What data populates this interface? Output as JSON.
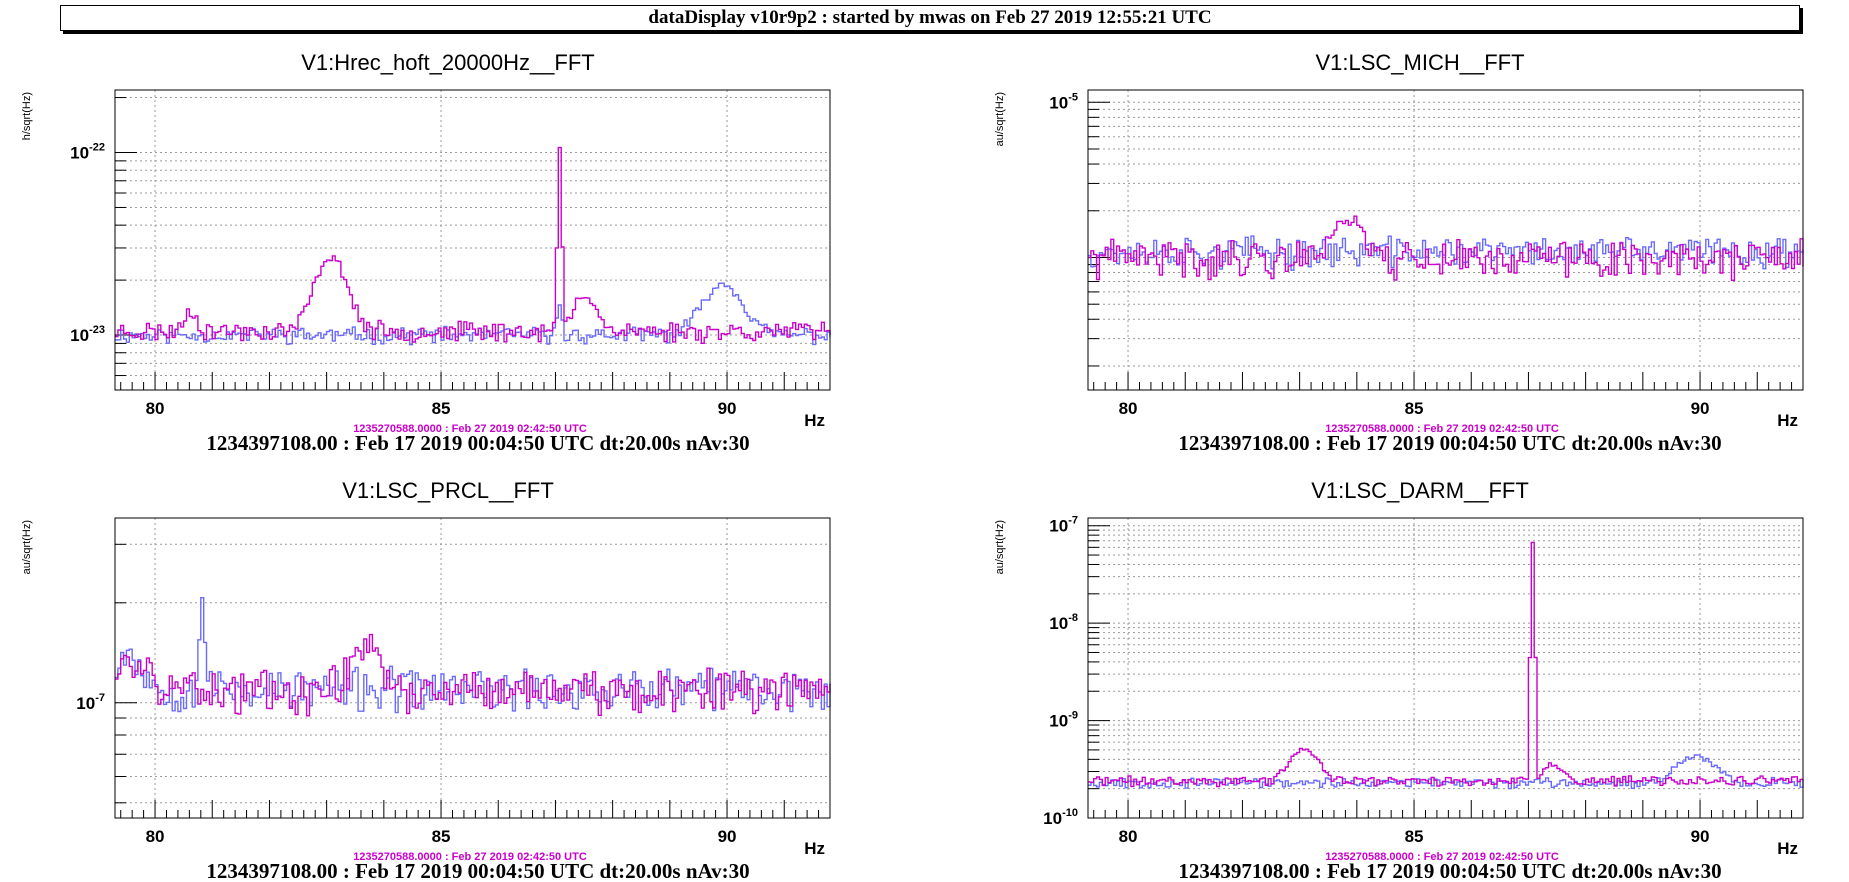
{
  "header": {
    "title": "dataDisplay v10r9p2 : started by mwas on Feb 27 2019 12:55:21 UTC"
  },
  "chart_data": [
    {
      "type": "line",
      "title": "V1:Hrec_hoft_20000Hz__FFT",
      "ylabel": "h/sqrt(Hz)",
      "xlabel": "Hz",
      "xlim": [
        79.3,
        91.8
      ],
      "ylim": [
        5e-24,
        2.2e-22
      ],
      "yscale": "log",
      "xticks": [
        "80",
        "85",
        "90"
      ],
      "yticks": [
        {
          "base": "10",
          "exp": "-22",
          "value": 1e-22
        },
        {
          "base": "10",
          "exp": "-23",
          "value": 1e-23
        }
      ],
      "stamp": "1235270588.0000 : Feb 27 2019 02:42:50 UTC",
      "footer": "1234397108.00 : Feb 17 2019 00:04:50 UTC dt:20.00s nAv:30",
      "grid": true,
      "series": [
        {
          "color": "#6a6aff",
          "noise": 0.08,
          "baseline": 1e-23,
          "bumps": [
            {
              "x": 89.9,
              "w": 0.45,
              "a": 0.9
            },
            {
              "x": 87.05,
              "w": 0.05,
              "a": 0.5
            }
          ],
          "seed": 11
        },
        {
          "color": "#cc00cc",
          "noise": 0.1,
          "baseline": 1.05e-23,
          "bumps": [
            {
              "x": 83.05,
              "w": 0.35,
              "a": 1.55
            },
            {
              "x": 87.05,
              "w": 0.04,
              "a": 9.0
            },
            {
              "x": 87.5,
              "w": 0.25,
              "a": 0.6
            },
            {
              "x": 80.6,
              "w": 0.15,
              "a": 0.3
            }
          ],
          "seed": 23
        }
      ]
    },
    {
      "type": "line",
      "title": "V1:LSC_MICH__FFT",
      "ylabel": "au/sqrt(Hz)",
      "xlabel": "Hz",
      "xlim": [
        79.3,
        91.8
      ],
      "ylim": [
        1.4e-07,
        1.2e-05
      ],
      "yscale": "log",
      "xticks": [
        "80",
        "85",
        "90"
      ],
      "yticks": [
        {
          "base": "10",
          "exp": "-5",
          "value": 1e-05
        }
      ],
      "stamp": "1235270588.0000 : Feb 27 2019 02:42:50 UTC",
      "footer": "1234397108.00 : Feb 17 2019 00:04:50 UTC dt:20.00s nAv:30",
      "grid": true,
      "series": [
        {
          "color": "#6a6aff",
          "noise": 0.18,
          "baseline": 1.1e-06,
          "bumps": [],
          "seed": 37
        },
        {
          "color": "#cc00cc",
          "noise": 0.22,
          "baseline": 1e-06,
          "bumps": [
            {
              "x": 83.8,
              "w": 0.35,
              "a": 0.8
            }
          ],
          "seed": 41
        }
      ]
    },
    {
      "type": "line",
      "title": "V1:LSC_PRCL__FFT",
      "ylabel": "au/sqrt(Hz)",
      "xlabel": "Hz",
      "xlim": [
        79.3,
        91.8
      ],
      "ylim": [
        4.5e-08,
        3.6e-07
      ],
      "yscale": "log",
      "xticks": [
        "80",
        "85",
        "90"
      ],
      "yticks": [
        {
          "base": "10",
          "exp": "-7",
          "value": 1e-07
        }
      ],
      "stamp": "1235270588.0000 : Feb 27 2019 02:42:50 UTC",
      "footer": "1234397108.00 : Feb 17 2019 00:04:50 UTC dt:20.00s nAv:30",
      "grid": true,
      "series": [
        {
          "color": "#6a6aff",
          "noise": 0.12,
          "baseline": 1.1e-07,
          "bumps": [
            {
              "x": 80.8,
              "w": 0.06,
              "a": 0.9
            },
            {
              "x": 79.5,
              "w": 0.3,
              "a": 0.3
            }
          ],
          "seed": 53
        },
        {
          "color": "#cc00cc",
          "noise": 0.12,
          "baseline": 1.1e-07,
          "bumps": [
            {
              "x": 83.7,
              "w": 0.3,
              "a": 0.4
            },
            {
              "x": 79.6,
              "w": 0.4,
              "a": 0.2
            }
          ],
          "seed": 59
        }
      ]
    },
    {
      "type": "line",
      "title": "V1:LSC_DARM__FFT",
      "ylabel": "au/sqrt(Hz)",
      "xlabel": "Hz",
      "xlim": [
        79.3,
        91.8
      ],
      "ylim": [
        1e-10,
        1.2e-07
      ],
      "yscale": "log",
      "xticks": [
        "80",
        "85",
        "90"
      ],
      "yticks": [
        {
          "base": "10",
          "exp": "-7",
          "value": 1e-07
        },
        {
          "base": "10",
          "exp": "-8",
          "value": 1e-08
        },
        {
          "base": "10",
          "exp": "-9",
          "value": 1e-09
        },
        {
          "base": "10",
          "exp": "-10",
          "value": 1e-10
        }
      ],
      "stamp": "1235270588.0000 : Feb 27 2019 02:42:50 UTC",
      "footer": "1234397108.00 : Feb 17 2019 00:04:50 UTC dt:20.00s nAv:30",
      "grid": true,
      "series": [
        {
          "color": "#6a6aff",
          "noise": 0.09,
          "baseline": 2.3e-10,
          "bumps": [
            {
              "x": 89.9,
              "w": 0.45,
              "a": 0.85
            }
          ],
          "seed": 67
        },
        {
          "color": "#cc00cc",
          "noise": 0.09,
          "baseline": 2.4e-10,
          "bumps": [
            {
              "x": 83.05,
              "w": 0.3,
              "a": 1.15
            },
            {
              "x": 87.05,
              "w": 0.03,
              "a": 280
            },
            {
              "x": 87.4,
              "w": 0.2,
              "a": 0.5
            }
          ],
          "seed": 71
        }
      ]
    }
  ]
}
